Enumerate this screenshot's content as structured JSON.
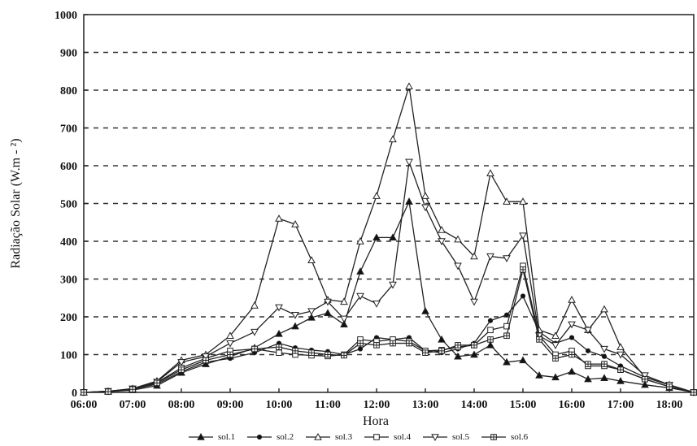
{
  "chart_data": {
    "type": "line",
    "xlabel": "Hora",
    "ylabel": "Radiação Solar (W.m - ²)",
    "ylim": [
      0,
      1000
    ],
    "yticks": [
      "0",
      "100",
      "200",
      "300",
      "400",
      "500",
      "600",
      "700",
      "800",
      "900",
      "1000"
    ],
    "xlim": [
      "06:00",
      "18:30"
    ],
    "xticks": [
      "06:00",
      "07:00",
      "08:00",
      "09:00",
      "10:00",
      "11:00",
      "12:00",
      "13:00",
      "14:00",
      "15:00",
      "16:00",
      "17:00",
      "18:00"
    ],
    "grid": "horizontal dashed",
    "legend_position": "bottom",
    "x": [
      "06:00",
      "06:30",
      "07:00",
      "07:30",
      "08:00",
      "08:30",
      "09:00",
      "09:30",
      "10:00",
      "10:20",
      "10:40",
      "11:00",
      "11:20",
      "11:40",
      "12:00",
      "12:20",
      "12:40",
      "13:00",
      "13:20",
      "13:40",
      "14:00",
      "14:20",
      "14:40",
      "15:00",
      "15:20",
      "15:40",
      "16:00",
      "16:20",
      "16:40",
      "17:00",
      "17:30",
      "18:00",
      "18:30"
    ],
    "series": [
      {
        "name": "sol.1",
        "marker": "triangle-filled",
        "values": [
          0,
          2,
          6,
          18,
          52,
          75,
          95,
          118,
          155,
          175,
          198,
          210,
          180,
          320,
          410,
          410,
          505,
          215,
          140,
          95,
          100,
          125,
          80,
          85,
          45,
          40,
          55,
          35,
          38,
          30,
          20,
          12,
          0
        ]
      },
      {
        "name": "sol.2",
        "marker": "circle-filled",
        "values": [
          0,
          2,
          8,
          22,
          55,
          80,
          90,
          105,
          130,
          118,
          112,
          108,
          100,
          115,
          145,
          140,
          145,
          110,
          105,
          115,
          130,
          190,
          205,
          255,
          160,
          130,
          145,
          110,
          95,
          70,
          40,
          20,
          0
        ]
      },
      {
        "name": "sol.3",
        "marker": "triangle-open",
        "values": [
          0,
          3,
          10,
          30,
          85,
          100,
          150,
          230,
          460,
          445,
          350,
          245,
          240,
          400,
          520,
          670,
          810,
          520,
          430,
          405,
          360,
          580,
          505,
          505,
          165,
          150,
          245,
          165,
          220,
          120,
          40,
          20,
          0
        ]
      },
      {
        "name": "sol.4",
        "marker": "square-open",
        "values": [
          0,
          3,
          9,
          26,
          65,
          90,
          110,
          115,
          105,
          100,
          98,
          96,
          100,
          140,
          135,
          140,
          135,
          110,
          112,
          120,
          125,
          165,
          175,
          335,
          150,
          100,
          110,
          70,
          70,
          60,
          35,
          15,
          0
        ]
      },
      {
        "name": "sol.5",
        "marker": "triangle-down-open",
        "values": [
          0,
          3,
          10,
          28,
          80,
          95,
          130,
          160,
          225,
          205,
          215,
          240,
          195,
          255,
          235,
          285,
          610,
          490,
          400,
          335,
          240,
          360,
          355,
          415,
          150,
          125,
          180,
          165,
          115,
          100,
          45,
          20,
          0
        ]
      },
      {
        "name": "sol.6",
        "marker": "square-cross",
        "values": [
          0,
          2,
          8,
          25,
          60,
          85,
          100,
          115,
          120,
          110,
          105,
          100,
          98,
          130,
          125,
          130,
          130,
          105,
          110,
          125,
          125,
          140,
          150,
          325,
          140,
          90,
          100,
          75,
          75,
          60,
          35,
          15,
          0
        ]
      }
    ]
  }
}
